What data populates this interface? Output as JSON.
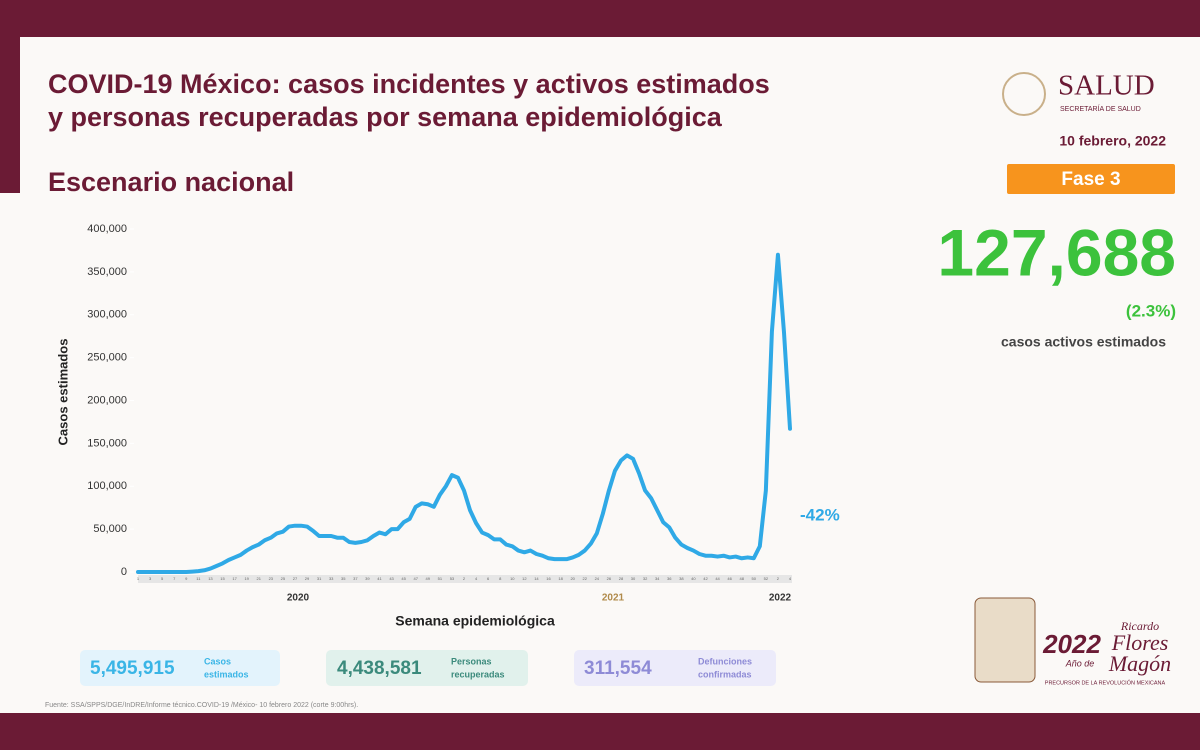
{
  "slide": {
    "title_lines": [
      "COVID-19 México: casos incidentes y activos estimados",
      "y personas recuperadas por semana epidemiológica"
    ],
    "subtitle": "Escenario nacional",
    "logo": "SALUD",
    "logo_sub": "SECRETARÍA DE SALUD",
    "date": "10 febrero, 2022",
    "phase": "Fase 3",
    "active_cases": "127,688",
    "active_pct": "(2.3%)",
    "active_label": "casos activos estimados",
    "boxes": [
      {
        "value": "5,495,915",
        "label_lines": [
          "Casos",
          "estimados"
        ]
      },
      {
        "value": "4,438,581",
        "label_lines": [
          "Personas",
          "recuperadas"
        ]
      },
      {
        "value": "311,554",
        "label_lines": [
          "Defunciones",
          "confirmadas"
        ]
      }
    ],
    "source": "Fuente: SSA/SPPS/DGE/InDRE/Informe técnico.COVID-19 /México- 10 febrero 2022 (corte 9:00hrs).",
    "emblem": {
      "year": "2022",
      "name_top": "Ricardo",
      "name_1": "Flores",
      "name_2": "Magón",
      "year_of": "Año de",
      "tagline": "PRECURSOR DE LA REVOLUCIÓN MEXICANA"
    }
  },
  "chart_data": {
    "type": "line",
    "x_label": "Semana epidemiológica",
    "y_label": "Casos estimados",
    "color": "#2fa9e6",
    "categories": [
      "1",
      null,
      "3",
      null,
      "5",
      null,
      "7",
      null,
      "9",
      null,
      "11",
      null,
      "13",
      null,
      "15",
      null,
      "17",
      null,
      "19",
      null,
      "21",
      null,
      "23",
      null,
      "25",
      null,
      "27",
      null,
      "29",
      null,
      "31",
      null,
      "33",
      null,
      "35",
      null,
      "37",
      null,
      "39",
      null,
      "41",
      null,
      "43",
      null,
      "45",
      null,
      "47",
      null,
      "49",
      null,
      "51",
      null,
      "53",
      null,
      "2",
      null,
      "4",
      null,
      "6",
      null,
      "8",
      null,
      "10",
      null,
      "12",
      null,
      "14",
      null,
      "16",
      null,
      "18",
      null,
      "20",
      null,
      "22",
      null,
      "24",
      null,
      "26",
      null,
      "28",
      null,
      "30",
      null,
      "32",
      null,
      "34",
      null,
      "36",
      null,
      "38",
      null,
      "40",
      null,
      "42",
      null,
      "44",
      null,
      "46",
      null,
      "48",
      null,
      "50",
      null,
      "52",
      null,
      "2",
      null,
      "4"
    ],
    "values": [
      0,
      0,
      0,
      0,
      0,
      0,
      0,
      0,
      0,
      500,
      1000,
      2000,
      4000,
      7000,
      10000,
      14000,
      17000,
      20000,
      25000,
      29000,
      32000,
      37000,
      40000,
      45000,
      47000,
      53000,
      54000,
      54000,
      53000,
      48000,
      42000,
      42000,
      42000,
      40000,
      40000,
      35000,
      34000,
      35000,
      37000,
      42000,
      46000,
      44000,
      50000,
      50000,
      58000,
      62000,
      76000,
      80000,
      79000,
      76000,
      90000,
      100000,
      113000,
      110000,
      95000,
      72000,
      57000,
      46000,
      43000,
      38000,
      38000,
      32000,
      30000,
      25000,
      23000,
      25000,
      21000,
      19000,
      16000,
      15000,
      15000,
      15000,
      17000,
      20000,
      25000,
      33000,
      45000,
      68000,
      95000,
      118000,
      130000,
      136000,
      132000,
      115000,
      95000,
      86000,
      72000,
      58000,
      52000,
      40000,
      32000,
      28000,
      25000,
      21000,
      19000,
      19000,
      18000,
      19000,
      17000,
      18000,
      16000,
      17000,
      16000,
      30000,
      95000,
      280000,
      370000,
      280000,
      167000
    ],
    "year_labels": [
      "2020",
      "2021",
      "2022"
    ],
    "annotation": "-42%",
    "ylim": [
      0,
      400000
    ],
    "yticks": [
      0,
      {
        "value": 50000,
        "label": "50,000"
      },
      {
        "value": 100000,
        "label": "100,000"
      },
      {
        "value": 150000,
        "label": "150,000"
      },
      {
        "value": 200000,
        "label": "200,000"
      },
      {
        "value": 250000,
        "label": "250,000"
      },
      {
        "value": 300000,
        "label": "300,000"
      },
      {
        "value": 350000,
        "label": "350,000"
      },
      {
        "value": 400000,
        "label": "400,000"
      }
    ]
  }
}
